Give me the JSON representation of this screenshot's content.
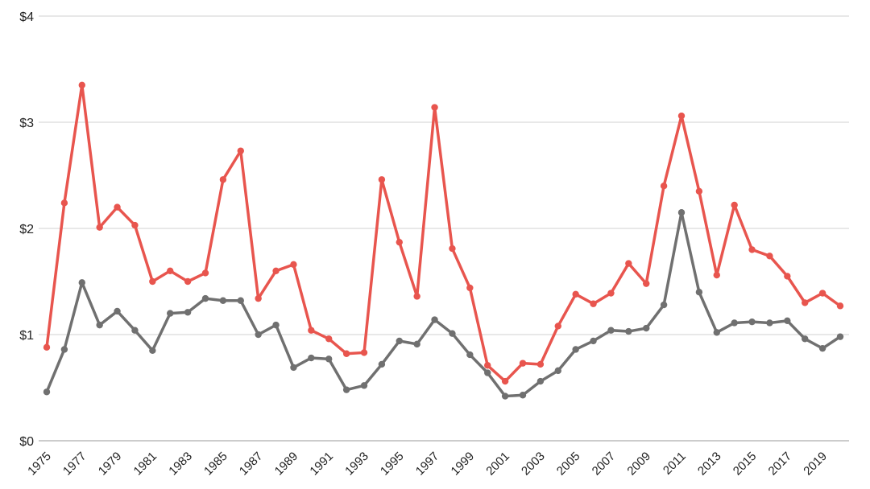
{
  "chart_data": {
    "type": "line",
    "x": [
      1975,
      1976,
      1977,
      1978,
      1979,
      1980,
      1981,
      1982,
      1983,
      1984,
      1985,
      1986,
      1987,
      1988,
      1989,
      1990,
      1991,
      1992,
      1993,
      1994,
      1995,
      1996,
      1997,
      1998,
      1999,
      2000,
      2001,
      2002,
      2003,
      2004,
      2005,
      2006,
      2007,
      2008,
      2009,
      2010,
      2011,
      2012,
      2013,
      2014,
      2015,
      2016,
      2017,
      2018,
      2019,
      2020
    ],
    "x_tick_labels": [
      "1975",
      "1977",
      "1979",
      "1981",
      "1983",
      "1985",
      "1987",
      "1989",
      "1991",
      "1993",
      "1995",
      "1997",
      "1999",
      "2001",
      "2003",
      "2005",
      "2007",
      "2009",
      "2011",
      "2013",
      "2015",
      "2017",
      "2019"
    ],
    "y_tick_labels": [
      "$0",
      "$1",
      "$2",
      "$3",
      "$4"
    ],
    "ylim": [
      0,
      4
    ],
    "grid": true,
    "series": [
      {
        "color": "#e8554e",
        "values": [
          0.88,
          2.24,
          3.35,
          2.01,
          2.2,
          2.03,
          1.5,
          1.6,
          1.5,
          1.58,
          2.46,
          2.73,
          1.34,
          1.6,
          1.66,
          1.04,
          0.96,
          0.82,
          0.83,
          2.46,
          1.87,
          1.36,
          3.14,
          1.81,
          1.44,
          0.71,
          0.56,
          0.73,
          0.72,
          1.08,
          1.38,
          1.29,
          1.39,
          1.67,
          1.48,
          2.4,
          3.06,
          2.35,
          1.56,
          2.22,
          1.8,
          1.74,
          1.55,
          1.3,
          1.39,
          1.27
        ]
      },
      {
        "color": "#707070",
        "values": [
          0.46,
          0.86,
          1.49,
          1.09,
          1.22,
          1.04,
          0.85,
          1.2,
          1.21,
          1.34,
          1.32,
          1.32,
          1.0,
          1.09,
          0.69,
          0.78,
          0.77,
          0.48,
          0.52,
          0.72,
          0.94,
          0.91,
          1.14,
          1.01,
          0.81,
          0.64,
          0.42,
          0.43,
          0.56,
          0.66,
          0.86,
          0.94,
          1.04,
          1.03,
          1.06,
          1.28,
          2.15,
          1.4,
          1.02,
          1.11,
          1.12,
          1.11,
          1.13,
          0.96,
          0.87,
          0.98
        ]
      }
    ]
  }
}
